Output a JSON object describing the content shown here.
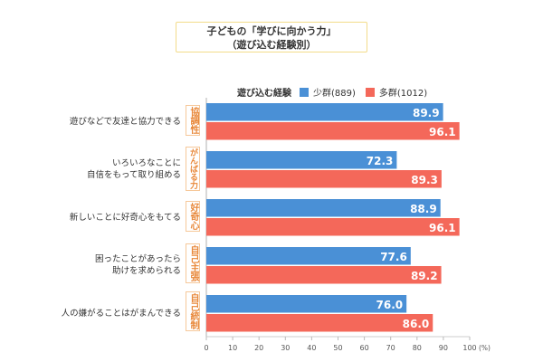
{
  "chart_data": {
    "type": "bar",
    "orientation": "horizontal",
    "title": "子どもの「学びに向かう力」\n（遊び込む経験別）",
    "legend_title": "遊び込む経験",
    "legend_position": "top",
    "categories": [
      "遊びなどで友達と協力できる",
      "いろいろなことに\n自信をもって取り組める",
      "新しいことに好奇心をもてる",
      "困ったことがあったら\n助けを求められる",
      "人の嫌がることはがまんできる"
    ],
    "category_tags": [
      "協調性",
      "がんばる力",
      "好奇心",
      "自己主張",
      "自己統制"
    ],
    "series": [
      {
        "name": "少群(889)",
        "color": "#4a90d6",
        "values": [
          89.9,
          72.3,
          88.9,
          77.6,
          76.0
        ]
      },
      {
        "name": "多群(1012)",
        "color": "#f4685a",
        "values": [
          96.1,
          89.3,
          96.1,
          89.2,
          86.0
        ]
      }
    ],
    "xlim": [
      0,
      100
    ],
    "xticks": [
      0,
      10,
      20,
      30,
      40,
      50,
      60,
      70,
      80,
      90,
      100
    ],
    "x_unit": "(%)",
    "grid": false
  }
}
